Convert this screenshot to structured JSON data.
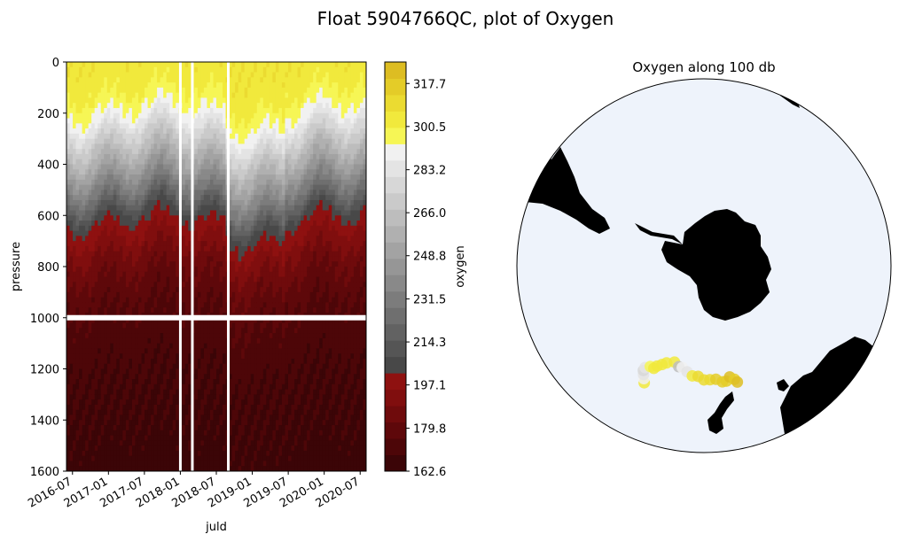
{
  "figure": {
    "title": "Float 5904766QC, plot of Oxygen"
  },
  "chart_data": [
    {
      "type": "heatmap",
      "title": "",
      "xlabel": "juld",
      "ylabel": "pressure",
      "x_ticks": [
        "2016-07",
        "2017-01",
        "2017-07",
        "2018-01",
        "2018-07",
        "2019-01",
        "2019-07",
        "2020-01",
        "2020-07"
      ],
      "x_range": [
        "2016-06",
        "2020-08"
      ],
      "y_ticks": [
        0,
        200,
        400,
        600,
        800,
        1000,
        1200,
        1400,
        1600
      ],
      "ylim": [
        1600,
        0
      ],
      "y_inverted": true,
      "gaps_at": [
        "2018-01",
        "2018-03",
        "2018-09"
      ],
      "missing_pressure_level": 1000,
      "profile": [
        {
          "pressure": 0,
          "oxygen": 305
        },
        {
          "pressure": 100,
          "oxygen": 302
        },
        {
          "pressure": 200,
          "oxygen": 292
        },
        {
          "pressure": 300,
          "oxygen": 272
        },
        {
          "pressure": 400,
          "oxygen": 252
        },
        {
          "pressure": 500,
          "oxygen": 230
        },
        {
          "pressure": 600,
          "oxygen": 205
        },
        {
          "pressure": 700,
          "oxygen": 193
        },
        {
          "pressure": 800,
          "oxygen": 184
        },
        {
          "pressure": 900,
          "oxygen": 178
        },
        {
          "pressure": 1000,
          "oxygen": 174
        },
        {
          "pressure": 1200,
          "oxygen": 170
        },
        {
          "pressure": 1400,
          "oxygen": 168
        },
        {
          "pressure": 1600,
          "oxygen": 166
        }
      ],
      "colorbar": {
        "label": "oxygen",
        "range": [
          162.6,
          326.3
        ],
        "ticks": [
          162.6,
          179.8,
          197.1,
          214.3,
          231.5,
          248.8,
          266.0,
          283.2,
          300.5,
          317.7
        ],
        "tick_labels": [
          "162.6",
          "179.8",
          "197.1",
          "214.3",
          "231.5",
          "248.8",
          "266.0",
          "283.2",
          "300.5",
          "317.7"
        ],
        "colors_low_to_high": [
          "#3b0507",
          "#4d0608",
          "#5e080a",
          "#6f0b0c",
          "#800e0e",
          "#8e1110",
          "#484848",
          "#555555",
          "#626262",
          "#6f6f6f",
          "#7c7c7c",
          "#898989",
          "#969696",
          "#a3a3a3",
          "#b0b0b0",
          "#bdbdbd",
          "#cacaca",
          "#d7d7d7",
          "#e4e4e4",
          "#f1f1f1",
          "#f6f655",
          "#f1e93c",
          "#ebdb31",
          "#e4cc28",
          "#ddbd22"
        ]
      }
    },
    {
      "type": "scatter",
      "title": "Oxygen along 100 db",
      "projection": "south-polar-stereographic",
      "ocean_color": "#eef3fb",
      "land_color": "#000000",
      "points": [
        {
          "lon": -27,
          "lat": -49,
          "oxygen": 301
        },
        {
          "lon": -28,
          "lat": -50,
          "oxygen": 288
        },
        {
          "lon": -29,
          "lat": -51,
          "oxygen": 284
        },
        {
          "lon": -30,
          "lat": -52,
          "oxygen": 279
        },
        {
          "lon": -30,
          "lat": -53,
          "oxygen": 281
        },
        {
          "lon": -28,
          "lat": -54,
          "oxygen": 300
        },
        {
          "lon": -26,
          "lat": -54,
          "oxygen": 302
        },
        {
          "lon": -25,
          "lat": -55,
          "oxygen": 303
        },
        {
          "lon": -23,
          "lat": -56,
          "oxygen": 301
        },
        {
          "lon": -21,
          "lat": -57,
          "oxygen": 302
        },
        {
          "lon": -17,
          "lat": -58,
          "oxygen": 303
        },
        {
          "lon": -14,
          "lat": -57,
          "oxygen": 262
        },
        {
          "lon": -12,
          "lat": -57,
          "oxygen": 290
        },
        {
          "lon": -9,
          "lat": -56,
          "oxygen": 283
        },
        {
          "lon": -6,
          "lat": -55,
          "oxygen": 305
        },
        {
          "lon": -3,
          "lat": -55,
          "oxygen": 307
        },
        {
          "lon": 0,
          "lat": -54,
          "oxygen": 310
        },
        {
          "lon": 3,
          "lat": -54,
          "oxygen": 312
        },
        {
          "lon": 6,
          "lat": -54,
          "oxygen": 314
        },
        {
          "lon": 9,
          "lat": -53,
          "oxygen": 316
        },
        {
          "lon": 11,
          "lat": -53,
          "oxygen": 318
        },
        {
          "lon": 13,
          "lat": -54,
          "oxygen": 320
        },
        {
          "lon": 15,
          "lat": -53,
          "oxygen": 319
        },
        {
          "lon": 16,
          "lat": -52,
          "oxygen": 321
        }
      ]
    }
  ]
}
